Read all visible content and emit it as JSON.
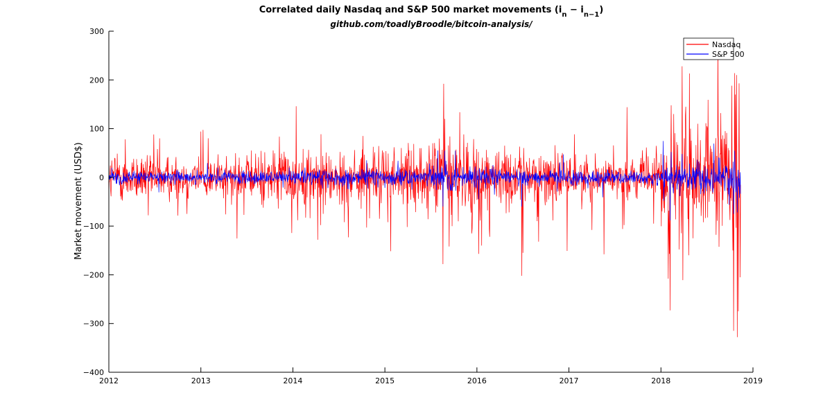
{
  "chart_data": {
    "type": "line",
    "title_main": "Correlated daily Nasdaq and S&P 500 market movements (i",
    "title_sub_n": "n",
    "title_dash": " − i",
    "title_sub_n1": "n−1",
    "title_close": ")",
    "subtitle": "github.com/toadlyBroodle/bitcoin-analysis/",
    "xlabel": "",
    "ylabel": "Market movement (USD$)",
    "xlim": [
      2012,
      2019
    ],
    "ylim": [
      -400,
      300
    ],
    "x_ticks": [
      "2012",
      "2013",
      "2014",
      "2015",
      "2016",
      "2017",
      "2018",
      "2019"
    ],
    "y_ticks": [
      "300",
      "200",
      "100",
      "0",
      "−100",
      "−200",
      "−300",
      "−400"
    ],
    "legend": {
      "position": "top-right"
    },
    "series": [
      {
        "name": "Nasdaq",
        "color": "#ff0000",
        "segments": [
          {
            "from": 2012.0,
            "to": 2012.6,
            "amp": 35
          },
          {
            "from": 2012.6,
            "to": 2013.6,
            "amp": 32
          },
          {
            "from": 2013.6,
            "to": 2014.5,
            "amp": 40
          },
          {
            "from": 2014.5,
            "to": 2015.5,
            "amp": 40
          },
          {
            "from": 2015.5,
            "to": 2016.2,
            "amp": 55
          },
          {
            "from": 2016.2,
            "to": 2017.0,
            "amp": 40
          },
          {
            "from": 2017.0,
            "to": 2018.0,
            "amp": 28
          },
          {
            "from": 2018.0,
            "to": 2018.85,
            "amp": 75
          }
        ],
        "extremes": [
          {
            "x": 2012.18,
            "y": 78
          },
          {
            "x": 2012.43,
            "y": -78
          },
          {
            "x": 2012.49,
            "y": 88
          },
          {
            "x": 2012.55,
            "y": 80
          },
          {
            "x": 2012.85,
            "y": -75
          },
          {
            "x": 2013.0,
            "y": 94
          },
          {
            "x": 2013.27,
            "y": -76
          },
          {
            "x": 2013.47,
            "y": -77
          },
          {
            "x": 2014.05,
            "y": -88
          },
          {
            "x": 2014.27,
            "y": -128
          },
          {
            "x": 2014.3,
            "y": -98
          },
          {
            "x": 2014.56,
            "y": -92
          },
          {
            "x": 2014.76,
            "y": 85
          },
          {
            "x": 2014.8,
            "y": -103
          },
          {
            "x": 2014.94,
            "y": -85
          },
          {
            "x": 2015.03,
            "y": -92
          },
          {
            "x": 2015.47,
            "y": -86
          },
          {
            "x": 2015.63,
            "y": -178
          },
          {
            "x": 2015.64,
            "y": 192
          },
          {
            "x": 2015.65,
            "y": 120
          },
          {
            "x": 2015.7,
            "y": -142
          },
          {
            "x": 2015.95,
            "y": -105
          },
          {
            "x": 2016.02,
            "y": -157
          },
          {
            "x": 2016.05,
            "y": -140
          },
          {
            "x": 2016.14,
            "y": -122
          },
          {
            "x": 2016.3,
            "y": 65
          },
          {
            "x": 2016.49,
            "y": -202
          },
          {
            "x": 2016.5,
            "y": -155
          },
          {
            "x": 2016.67,
            "y": -132
          },
          {
            "x": 2016.85,
            "y": 66
          },
          {
            "x": 2017.25,
            "y": -108
          },
          {
            "x": 2017.38,
            "y": -158
          },
          {
            "x": 2017.6,
            "y": -98
          },
          {
            "x": 2017.63,
            "y": 144
          },
          {
            "x": 2017.92,
            "y": -95
          },
          {
            "x": 2018.08,
            "y": -208
          },
          {
            "x": 2018.1,
            "y": -273
          },
          {
            "x": 2018.11,
            "y": 148
          },
          {
            "x": 2018.14,
            "y": 130
          },
          {
            "x": 2018.2,
            "y": -148
          },
          {
            "x": 2018.23,
            "y": 228
          },
          {
            "x": 2018.24,
            "y": -211
          },
          {
            "x": 2018.27,
            "y": 145
          },
          {
            "x": 2018.3,
            "y": -160
          },
          {
            "x": 2018.35,
            "y": -125
          },
          {
            "x": 2018.4,
            "y": 110
          },
          {
            "x": 2018.5,
            "y": 105
          },
          {
            "x": 2018.6,
            "y": -118
          },
          {
            "x": 2018.7,
            "y": 95
          },
          {
            "x": 2018.78,
            "y": -150
          },
          {
            "x": 2018.79,
            "y": -315
          },
          {
            "x": 2018.8,
            "y": 214
          },
          {
            "x": 2018.81,
            "y": 170
          },
          {
            "x": 2018.82,
            "y": 210
          },
          {
            "x": 2018.83,
            "y": -328
          },
          {
            "x": 2018.84,
            "y": -275
          },
          {
            "x": 2018.85,
            "y": 193
          },
          {
            "x": 2018.86,
            "y": -205
          },
          {
            "x": 2018.87,
            "y": 123
          }
        ]
      },
      {
        "name": "S&P 500",
        "color": "#0000ff",
        "segments": [
          {
            "from": 2012.0,
            "to": 2013.0,
            "amp": 9
          },
          {
            "from": 2013.0,
            "to": 2014.5,
            "amp": 10
          },
          {
            "from": 2014.5,
            "to": 2015.5,
            "amp": 12
          },
          {
            "from": 2015.5,
            "to": 2016.2,
            "amp": 17
          },
          {
            "from": 2016.2,
            "to": 2018.0,
            "amp": 10
          },
          {
            "from": 2018.0,
            "to": 2018.85,
            "amp": 22
          }
        ],
        "extremes": [
          {
            "x": 2014.8,
            "y": 35
          },
          {
            "x": 2015.63,
            "y": -60
          },
          {
            "x": 2015.65,
            "y": 55
          },
          {
            "x": 2016.02,
            "y": -45
          },
          {
            "x": 2016.49,
            "y": -60
          },
          {
            "x": 2018.1,
            "y": -88
          },
          {
            "x": 2018.11,
            "y": 52
          },
          {
            "x": 2018.23,
            "y": 48
          },
          {
            "x": 2018.79,
            "y": -75
          },
          {
            "x": 2018.8,
            "y": 55
          },
          {
            "x": 2018.83,
            "y": -72
          },
          {
            "x": 2018.87,
            "y": 42
          }
        ]
      }
    ]
  }
}
